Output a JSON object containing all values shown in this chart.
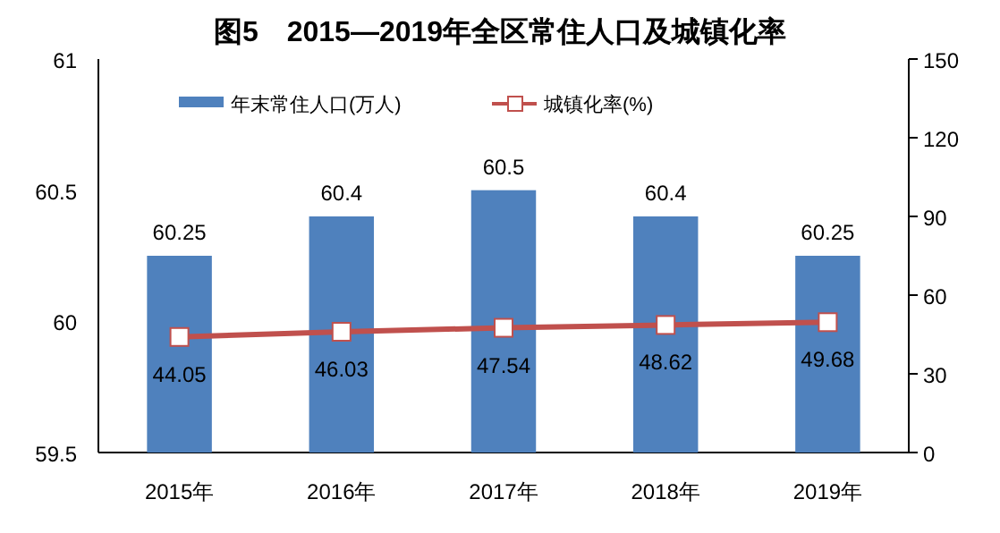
{
  "chart_data": {
    "type": "bar",
    "title": "图5　2015—2019年全区常住人口及城镇化率",
    "categories": [
      "2015年",
      "2016年",
      "2017年",
      "2018年",
      "2019年"
    ],
    "series": [
      {
        "name": "年末常住人口(万人)",
        "color": "#4f81bd",
        "values": [
          60.25,
          60.4,
          60.5,
          60.4,
          60.25
        ]
      },
      {
        "name": "城镇化率(%)",
        "type": "line",
        "axis": "y2",
        "color": "#c0504d",
        "marker": "square",
        "values": [
          44.05,
          46.03,
          47.54,
          48.62,
          49.68
        ]
      }
    ],
    "ylim": [
      59.5,
      61
    ],
    "yticks": [
      59.5,
      60,
      60.5,
      61
    ],
    "y2lim": [
      0,
      150
    ],
    "y2ticks": [
      0,
      30,
      60,
      90,
      120,
      150
    ],
    "data_labels": true,
    "legend": "top",
    "grid": false
  }
}
